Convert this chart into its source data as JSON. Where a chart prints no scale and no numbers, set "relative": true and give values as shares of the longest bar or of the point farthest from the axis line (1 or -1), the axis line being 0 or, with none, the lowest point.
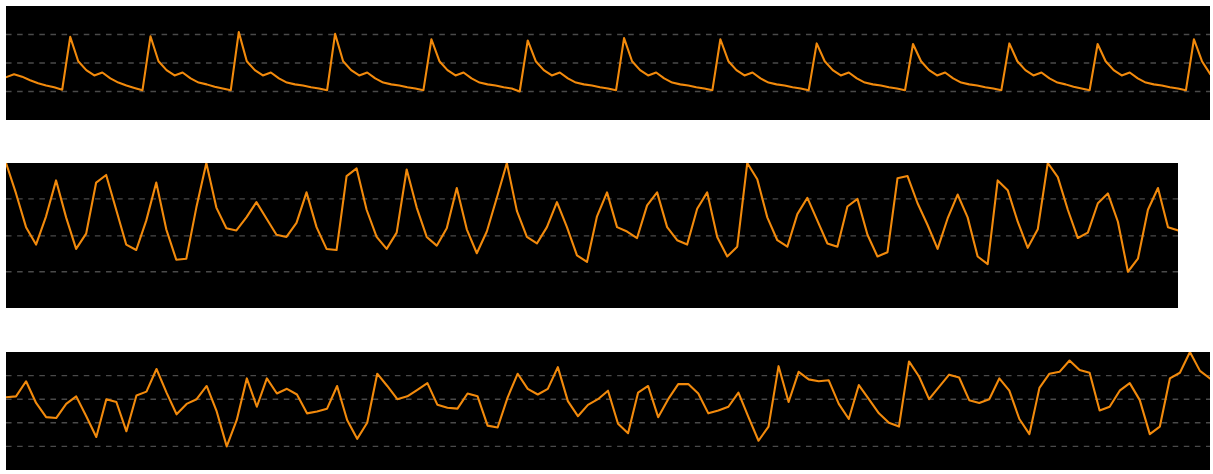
{
  "chart_data": [
    {
      "type": "line",
      "relative": true,
      "ref_lines": [
        {
          "axis": "y",
          "value": 0,
          "color": "#4a4a4a",
          "line_style": "dashed"
        },
        {
          "axis": "y",
          "value": 0.48,
          "color": "#4a4a4a",
          "line_style": "dashed"
        },
        {
          "axis": "y",
          "value": 0.96,
          "color": "#4a4a4a",
          "line_style": "dashed"
        }
      ],
      "categories": [
        null,
        null,
        null,
        null,
        null,
        null,
        null,
        null,
        null,
        null,
        null,
        null,
        null,
        null,
        null,
        null,
        null,
        null,
        null,
        null,
        null,
        null,
        null,
        null,
        null,
        null,
        null,
        null,
        null,
        null,
        null,
        null,
        null,
        null,
        null,
        null,
        null,
        null,
        null,
        null,
        null,
        null,
        null,
        null,
        null,
        null,
        null,
        null,
        null,
        null,
        null,
        null,
        null,
        null,
        null,
        null,
        null,
        null,
        null,
        null,
        null,
        null,
        null,
        null,
        null,
        null,
        null,
        null,
        null,
        null,
        null,
        null,
        null,
        null,
        null,
        null,
        null,
        null,
        null,
        null,
        null,
        null,
        null,
        null,
        null,
        null,
        null,
        null,
        null,
        null,
        null,
        null,
        null,
        null,
        null,
        null,
        null,
        null,
        null,
        null,
        null,
        null,
        null,
        null,
        null,
        null,
        null,
        null,
        null,
        null,
        null,
        null,
        null,
        null,
        null,
        null,
        null,
        null,
        null,
        null,
        null,
        null,
        null,
        null,
        null,
        null,
        null,
        null,
        null,
        null,
        null,
        null,
        null,
        null,
        null,
        null,
        null,
        null,
        null,
        null,
        null,
        null,
        null,
        null,
        null,
        null,
        null,
        null,
        null,
        null,
        null
      ],
      "series": [
        {
          "color": "#f28a0c",
          "values": [
            0.24,
            0.29,
            0.25,
            0.19,
            0.14,
            0.1,
            0.07,
            0.03,
            0.92,
            0.51,
            0.36,
            0.27,
            0.32,
            0.22,
            0.15,
            0.1,
            0.06,
            0.02,
            0.93,
            0.51,
            0.36,
            0.27,
            0.32,
            0.22,
            0.15,
            0.12,
            0.08,
            0.05,
            0.02,
            1.0,
            0.51,
            0.36,
            0.27,
            0.32,
            0.22,
            0.15,
            0.12,
            0.1,
            0.07,
            0.05,
            0.02,
            0.97,
            0.51,
            0.36,
            0.27,
            0.32,
            0.22,
            0.15,
            0.12,
            0.1,
            0.07,
            0.05,
            0.02,
            0.88,
            0.51,
            0.36,
            0.27,
            0.32,
            0.22,
            0.15,
            0.12,
            0.1,
            0.07,
            0.05,
            0.0,
            0.86,
            0.51,
            0.36,
            0.27,
            0.32,
            0.22,
            0.15,
            0.12,
            0.1,
            0.07,
            0.05,
            0.02,
            0.9,
            0.51,
            0.36,
            0.27,
            0.32,
            0.22,
            0.15,
            0.12,
            0.1,
            0.07,
            0.05,
            0.02,
            0.88,
            0.51,
            0.36,
            0.27,
            0.32,
            0.22,
            0.15,
            0.12,
            0.1,
            0.07,
            0.05,
            0.02,
            0.81,
            0.51,
            0.36,
            0.27,
            0.32,
            0.22,
            0.15,
            0.12,
            0.1,
            0.07,
            0.05,
            0.02,
            0.8,
            0.51,
            0.36,
            0.27,
            0.32,
            0.22,
            0.15,
            0.12,
            0.1,
            0.07,
            0.05,
            0.02,
            0.81,
            0.51,
            0.36,
            0.27,
            0.32,
            0.22,
            0.15,
            0.12,
            0.08,
            0.05,
            0.02,
            0.8,
            0.51,
            0.36,
            0.27,
            0.32,
            0.22,
            0.15,
            0.12,
            0.1,
            0.07,
            0.05,
            0.02,
            0.88,
            0.51,
            0.3
          ]
        }
      ]
    },
    {
      "type": "line",
      "relative": true,
      "ref_lines": [
        {
          "axis": "y",
          "value": 0,
          "color": "#4a4a4a",
          "line_style": "dashed"
        },
        {
          "axis": "y",
          "value": 0.33,
          "color": "#4a4a4a",
          "line_style": "dashed"
        },
        {
          "axis": "y",
          "value": 0.67,
          "color": "#4a4a4a",
          "line_style": "dashed"
        }
      ],
      "categories": [
        null,
        null,
        null,
        null,
        null,
        null,
        null,
        null,
        null,
        null,
        null,
        null,
        null,
        null,
        null,
        null,
        null,
        null,
        null,
        null,
        null,
        null,
        null,
        null,
        null,
        null,
        null,
        null,
        null,
        null,
        null,
        null,
        null,
        null,
        null,
        null,
        null,
        null,
        null,
        null,
        null,
        null,
        null,
        null,
        null,
        null,
        null,
        null,
        null,
        null,
        null,
        null,
        null,
        null,
        null,
        null,
        null,
        null,
        null,
        null,
        null,
        null,
        null,
        null,
        null,
        null,
        null,
        null,
        null,
        null,
        null,
        null,
        null,
        null,
        null,
        null,
        null,
        null,
        null,
        null,
        null,
        null,
        null,
        null,
        null,
        null,
        null,
        null,
        null,
        null,
        null,
        null,
        null,
        null,
        null,
        null,
        null,
        null,
        null,
        null,
        null,
        null,
        null,
        null,
        null,
        null,
        null,
        null,
        null,
        null,
        null,
        null,
        null,
        null,
        null,
        null,
        null,
        null
      ],
      "series": [
        {
          "color": "#f28a0c",
          "values": [
            1.0,
            0.72,
            0.41,
            0.25,
            0.51,
            0.84,
            0.5,
            0.21,
            0.35,
            0.82,
            0.89,
            0.57,
            0.25,
            0.2,
            0.47,
            0.82,
            0.39,
            0.11,
            0.12,
            0.59,
            1.0,
            0.59,
            0.4,
            0.38,
            0.5,
            0.64,
            0.49,
            0.34,
            0.32,
            0.45,
            0.73,
            0.41,
            0.21,
            0.2,
            0.88,
            0.95,
            0.57,
            0.32,
            0.21,
            0.36,
            0.94,
            0.59,
            0.32,
            0.24,
            0.4,
            0.77,
            0.39,
            0.17,
            0.37,
            0.68,
            1.0,
            0.56,
            0.32,
            0.26,
            0.41,
            0.64,
            0.41,
            0.15,
            0.09,
            0.51,
            0.73,
            0.41,
            0.37,
            0.31,
            0.61,
            0.73,
            0.41,
            0.29,
            0.25,
            0.58,
            0.73,
            0.32,
            0.14,
            0.23,
            1.0,
            0.85,
            0.5,
            0.29,
            0.23,
            0.53,
            0.68,
            0.47,
            0.26,
            0.23,
            0.6,
            0.67,
            0.34,
            0.14,
            0.18,
            0.86,
            0.88,
            0.63,
            0.43,
            0.21,
            0.49,
            0.71,
            0.5,
            0.14,
            0.07,
            0.84,
            0.75,
            0.46,
            0.22,
            0.39,
            1.0,
            0.87,
            0.57,
            0.31,
            0.36,
            0.63,
            0.72,
            0.46,
            0.0,
            0.12,
            0.57,
            0.77,
            0.41,
            0.38
          ]
        }
      ]
    },
    {
      "type": "line",
      "relative": true,
      "ref_lines": [
        {
          "axis": "y",
          "value": 0,
          "color": "#4a4a4a",
          "line_style": "dashed"
        },
        {
          "axis": "y",
          "value": 0.25,
          "color": "#4a4a4a",
          "line_style": "dashed"
        },
        {
          "axis": "y",
          "value": 0.5,
          "color": "#4a4a4a",
          "line_style": "dashed"
        },
        {
          "axis": "y",
          "value": 0.75,
          "color": "#4a4a4a",
          "line_style": "dashed"
        }
      ],
      "categories": [
        null,
        null,
        null,
        null,
        null,
        null,
        null,
        null,
        null,
        null,
        null,
        null,
        null,
        null,
        null,
        null,
        null,
        null,
        null,
        null,
        null,
        null,
        null,
        null,
        null,
        null,
        null,
        null,
        null,
        null,
        null,
        null,
        null,
        null,
        null,
        null,
        null,
        null,
        null,
        null,
        null,
        null,
        null,
        null,
        null,
        null,
        null,
        null,
        null,
        null,
        null,
        null,
        null,
        null,
        null,
        null,
        null,
        null,
        null,
        null,
        null,
        null,
        null,
        null,
        null,
        null,
        null,
        null,
        null,
        null,
        null,
        null,
        null,
        null,
        null,
        null,
        null,
        null,
        null,
        null,
        null,
        null,
        null,
        null,
        null,
        null,
        null,
        null,
        null,
        null,
        null,
        null,
        null,
        null,
        null,
        null,
        null,
        null,
        null,
        null,
        null,
        null,
        null,
        null,
        null,
        null,
        null,
        null,
        null,
        null,
        null,
        null,
        null,
        null,
        null,
        null,
        null,
        null,
        null,
        null,
        null
      ],
      "series": [
        {
          "color": "#f28a0c",
          "values": [
            0.52,
            0.53,
            0.69,
            0.46,
            0.31,
            0.3,
            0.45,
            0.53,
            0.32,
            0.1,
            0.5,
            0.47,
            0.16,
            0.54,
            0.58,
            0.82,
            0.57,
            0.34,
            0.45,
            0.5,
            0.64,
            0.37,
            0.0,
            0.28,
            0.72,
            0.42,
            0.72,
            0.56,
            0.61,
            0.55,
            0.35,
            0.37,
            0.4,
            0.64,
            0.28,
            0.08,
            0.25,
            0.77,
            0.64,
            0.5,
            0.53,
            0.6,
            0.67,
            0.44,
            0.41,
            0.4,
            0.56,
            0.53,
            0.22,
            0.2,
            0.52,
            0.77,
            0.61,
            0.55,
            0.61,
            0.84,
            0.48,
            0.32,
            0.44,
            0.5,
            0.59,
            0.24,
            0.14,
            0.57,
            0.64,
            0.31,
            0.5,
            0.66,
            0.66,
            0.56,
            0.35,
            0.38,
            0.42,
            0.57,
            0.31,
            0.06,
            0.21,
            0.85,
            0.47,
            0.79,
            0.71,
            0.69,
            0.7,
            0.45,
            0.29,
            0.65,
            0.5,
            0.35,
            0.25,
            0.21,
            0.9,
            0.74,
            0.5,
            0.63,
            0.76,
            0.73,
            0.49,
            0.46,
            0.5,
            0.72,
            0.59,
            0.29,
            0.13,
            0.62,
            0.77,
            0.79,
            0.91,
            0.81,
            0.78,
            0.38,
            0.42,
            0.59,
            0.67,
            0.49,
            0.13,
            0.21,
            0.72,
            0.78,
            1.0,
            0.8,
            0.72
          ]
        }
      ]
    }
  ]
}
